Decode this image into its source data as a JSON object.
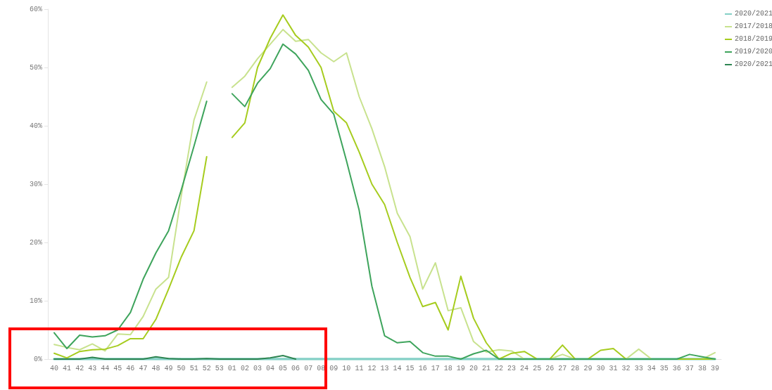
{
  "chart_data": {
    "type": "line",
    "categories": [
      "40",
      "41",
      "42",
      "43",
      "44",
      "45",
      "46",
      "47",
      "48",
      "49",
      "50",
      "51",
      "52",
      "53",
      "01",
      "02",
      "03",
      "04",
      "05",
      "06",
      "07",
      "08",
      "09",
      "10",
      "11",
      "12",
      "13",
      "14",
      "15",
      "16",
      "17",
      "18",
      "19",
      "20",
      "21",
      "22",
      "23",
      "24",
      "25",
      "26",
      "27",
      "28",
      "29",
      "30",
      "31",
      "32",
      "33",
      "34",
      "35",
      "36",
      "37",
      "38",
      "39"
    ],
    "series": [
      {
        "name": "2020/2021",
        "color": "#84d0c6",
        "values": [
          0,
          0,
          0,
          0,
          0,
          0,
          0,
          0,
          0,
          0,
          0,
          0,
          0,
          0,
          0,
          0,
          0,
          0,
          0,
          0,
          0,
          0,
          0,
          0,
          0,
          0,
          0,
          0,
          0,
          0,
          0,
          0,
          0,
          0,
          0,
          0,
          0,
          0,
          0,
          0,
          0,
          0,
          0,
          0,
          0,
          0,
          0,
          0,
          0,
          0,
          0,
          0,
          0
        ]
      },
      {
        "name": "2017/2018",
        "color": "#c8e28e",
        "values": [
          2.5,
          2.0,
          1.6,
          2.6,
          1.4,
          4.3,
          4.2,
          7.3,
          12,
          14,
          28,
          41,
          47.5,
          null,
          46.6,
          48.5,
          51.5,
          54,
          56.5,
          54.5,
          54.8,
          52.5,
          51,
          52.5,
          45,
          39.5,
          33,
          25,
          21,
          12,
          16.5,
          8.3,
          8.8,
          3,
          1.2,
          1.6,
          1.4,
          0,
          0,
          0,
          0.8,
          0,
          0,
          0,
          0,
          0,
          1.7,
          0,
          0,
          0,
          0,
          0,
          1.1
        ]
      },
      {
        "name": "2018/2019",
        "color": "#a6cc1e",
        "values": [
          1.0,
          0.2,
          1.3,
          1.6,
          1.7,
          2.3,
          3.5,
          3.5,
          6.8,
          12,
          17.5,
          22,
          34.7,
          null,
          38,
          40.5,
          50,
          55,
          59,
          55.5,
          53.5,
          50,
          42.5,
          40.5,
          35.5,
          30,
          26.5,
          20,
          14,
          9,
          9.7,
          5,
          14.2,
          7,
          2.8,
          0,
          1,
          1.3,
          0,
          0,
          2.4,
          0,
          0,
          1.5,
          1.8,
          0,
          0,
          0,
          0,
          0,
          0,
          0,
          0
        ]
      },
      {
        "name": "2019/2020",
        "color": "#3ea45c",
        "values": [
          4.5,
          1.8,
          4.1,
          3.8,
          4.0,
          5.0,
          8,
          13.7,
          18.2,
          22,
          29,
          36.5,
          44.2,
          null,
          45.5,
          43.3,
          47.3,
          49.8,
          54,
          52.3,
          49.5,
          44.5,
          42,
          34,
          25.5,
          12.5,
          4,
          2.8,
          3,
          1.1,
          0.5,
          0.5,
          0,
          0.9,
          1.5,
          0,
          0,
          0,
          0,
          0,
          0,
          0,
          0,
          0,
          0,
          0,
          0,
          0,
          0,
          0,
          0.8,
          0.4,
          0
        ]
      },
      {
        "name": "2020/2021",
        "color": "#2e8552",
        "values": [
          0,
          0,
          0,
          0.3,
          0,
          0,
          0,
          0,
          0.4,
          0.1,
          0,
          0,
          0.1,
          0,
          0,
          0,
          0,
          0.2,
          0.6,
          0,
          null,
          null,
          null,
          null,
          null,
          null,
          null,
          null,
          null,
          null,
          null,
          null,
          null,
          null,
          null,
          null,
          null,
          null,
          null,
          null,
          null,
          null,
          null,
          null,
          null,
          null,
          null,
          null,
          null,
          null,
          null,
          null,
          null
        ]
      }
    ],
    "ylim": [
      0,
      60
    ],
    "yticks": [
      {
        "value": 0,
        "label": "0%"
      },
      {
        "value": 10,
        "label": "10%"
      },
      {
        "value": 20,
        "label": "20%"
      },
      {
        "value": 30,
        "label": "30%"
      },
      {
        "value": 40,
        "label": "40%"
      },
      {
        "value": 50,
        "label": "50%"
      },
      {
        "value": 60,
        "label": "60%"
      }
    ],
    "grid": false,
    "legend": "top right",
    "marker": "none",
    "line_style": "solid"
  }
}
